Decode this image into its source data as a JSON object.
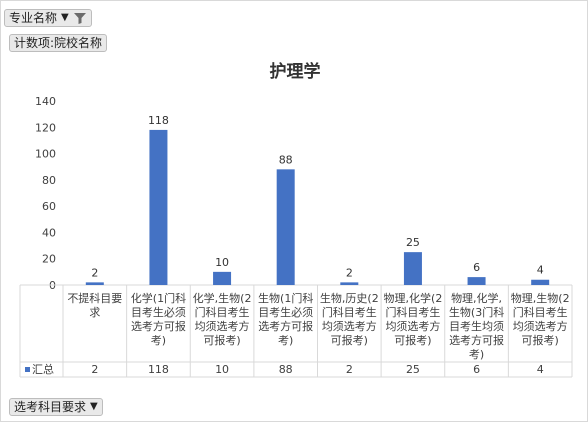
{
  "pivot": {
    "field_button": "专业名称",
    "count_button": "计数项:院校名称",
    "axis_button": "选考科目要求"
  },
  "chart_data": {
    "type": "bar",
    "title": "护理学",
    "ylim": [
      0,
      140
    ],
    "yticks": [
      0,
      20,
      40,
      60,
      80,
      100,
      120,
      140
    ],
    "grid": false,
    "bar_color": "#4472c4",
    "categories": [
      [
        "不提科目要",
        "求"
      ],
      [
        "化学(1门科",
        "目考生必须",
        "选考方可报",
        "考)"
      ],
      [
        "化学,生物(2",
        "门科目考生",
        "均须选考方",
        "可报考)"
      ],
      [
        "生物(1门科",
        "目考生必须",
        "选考方可报",
        "考)"
      ],
      [
        "生物,历史(2",
        "门科目考生",
        "均须选考方",
        "可报考)"
      ],
      [
        "物理,化学(2",
        "门科目考生",
        "均须选考方",
        "可报考)"
      ],
      [
        "物理,化学,",
        "生物(3门科",
        "目考生均须",
        "选考方可报",
        "考)"
      ],
      [
        "物理,生物(2",
        "门科目考生",
        "均须选考方",
        "可报考)"
      ]
    ],
    "series": [
      {
        "name": "汇总",
        "values": [
          2,
          118,
          10,
          88,
          2,
          25,
          6,
          4
        ]
      }
    ]
  }
}
